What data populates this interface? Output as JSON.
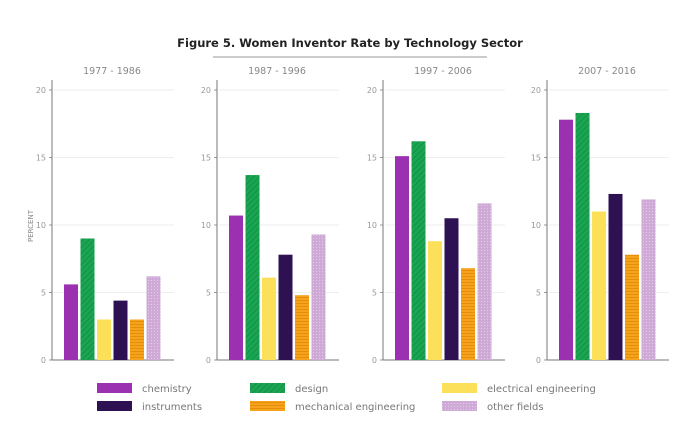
{
  "chart_data": {
    "type": "bar",
    "title": "Figure 5. Women Inventor Rate by Technology Sector",
    "ylabel": "PERCENT",
    "xlabel": "",
    "ylim": [
      0,
      20
    ],
    "yticks": [
      "0",
      "5",
      "10",
      "15",
      "20"
    ],
    "grid": true,
    "legend_position": "bottom",
    "panels": [
      {
        "label": "1977 - 1986",
        "values": [
          5.6,
          9.0,
          3.0,
          4.4,
          3.0,
          6.2
        ]
      },
      {
        "label": "1987 - 1996",
        "values": [
          10.7,
          13.7,
          6.1,
          7.8,
          4.8,
          9.3
        ]
      },
      {
        "label": "1997 - 2006",
        "values": [
          15.1,
          16.2,
          8.8,
          10.5,
          6.8,
          11.6
        ]
      },
      {
        "label": "2007 - 2016",
        "values": [
          17.8,
          18.3,
          11.0,
          12.3,
          7.8,
          11.9
        ]
      }
    ],
    "series": [
      {
        "name": "chemistry",
        "color": "#9b30b0",
        "pattern": "solid"
      },
      {
        "name": "design",
        "color": "#1aa552",
        "pattern": "diagonal-hatch"
      },
      {
        "name": "electrical engineering",
        "color": "#fde05a",
        "pattern": "solid"
      },
      {
        "name": "instruments",
        "color": "#2e1152",
        "pattern": "solid"
      },
      {
        "name": "mechanical engineering",
        "color": "#f7a21c",
        "pattern": "horizontal-lines"
      },
      {
        "name": "other fields",
        "color": "#cfa9d6",
        "pattern": "dotted"
      }
    ]
  }
}
